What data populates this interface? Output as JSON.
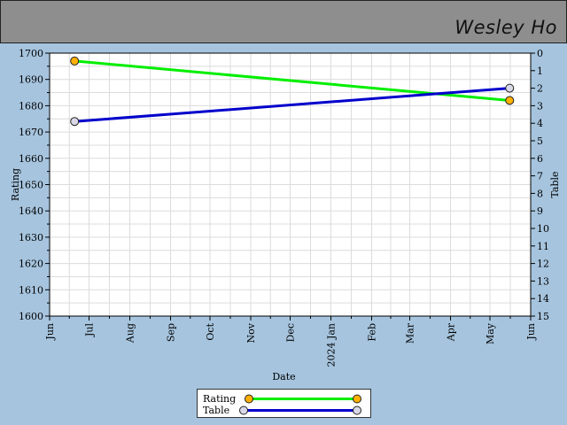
{
  "header": {
    "player_name": "Wesley Ho"
  },
  "chart_data": {
    "type": "line",
    "xlabel": "Date",
    "ylabel": "Rating",
    "y2label": "Table",
    "x_ticks": [
      "Jun",
      "Jul",
      "Aug",
      "Sep",
      "Oct",
      "Nov",
      "Dec",
      "2024 Jan",
      "Feb",
      "Mar",
      "Apr",
      "May",
      "Jun"
    ],
    "x_tick_dates": [
      "2023-06-01",
      "2023-07-01",
      "2023-08-01",
      "2023-09-01",
      "2023-10-01",
      "2023-11-01",
      "2023-12-01",
      "2024-01-01",
      "2024-02-01",
      "2024-03-01",
      "2024-04-01",
      "2024-05-01",
      "2024-06-01"
    ],
    "xlim": [
      "2023-06-01",
      "2024-06-01"
    ],
    "ylim": [
      1600,
      1700
    ],
    "y_ticks": [
      1600,
      1610,
      1620,
      1630,
      1640,
      1650,
      1660,
      1670,
      1680,
      1690,
      1700
    ],
    "y2lim": [
      15,
      0
    ],
    "y2_ticks": [
      0,
      1,
      2,
      3,
      4,
      5,
      6,
      7,
      8,
      9,
      10,
      11,
      12,
      13,
      14,
      15
    ],
    "grid": true,
    "legend_position": "bottom-center",
    "series": [
      {
        "name": "Rating",
        "axis": "left",
        "color": "#00ee00",
        "marker_color": "#ffb000",
        "x": [
          "2023-06-20",
          "2024-05-16"
        ],
        "y": [
          1697,
          1682
        ]
      },
      {
        "name": "Table",
        "axis": "right",
        "color": "#0000cc",
        "marker_color": "#d8d8e8",
        "x": [
          "2023-06-20",
          "2024-05-16"
        ],
        "y": [
          3.9,
          2.0
        ]
      }
    ]
  }
}
